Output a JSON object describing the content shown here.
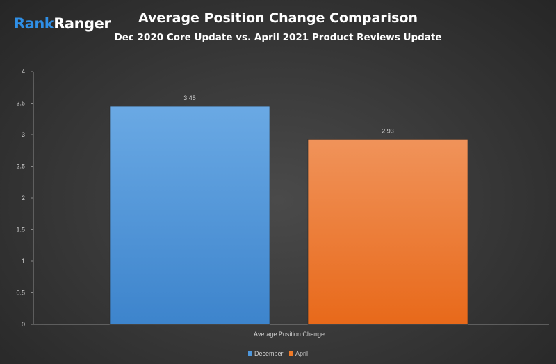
{
  "brand": {
    "part1": "Rank",
    "part2": "Ranger"
  },
  "chart_data": {
    "type": "bar",
    "title": "Average Position Change Comparison",
    "subtitle": "Dec 2020 Core Update vs. April 2021 Product Reviews Update",
    "categories": [
      "Average Position Change"
    ],
    "series": [
      {
        "name": "December",
        "values": [
          3.45
        ],
        "color": "#4e97dc"
      },
      {
        "name": "April",
        "values": [
          2.93
        ],
        "color": "#f07a27"
      }
    ],
    "ylim": [
      0,
      4
    ],
    "yticks": [
      "0",
      "0.5",
      "1",
      "1.5",
      "2",
      "2.5",
      "3",
      "3.5",
      "4"
    ],
    "data_labels": [
      "3.45",
      "2.93"
    ],
    "grid": false,
    "legend_position": "bottom"
  }
}
